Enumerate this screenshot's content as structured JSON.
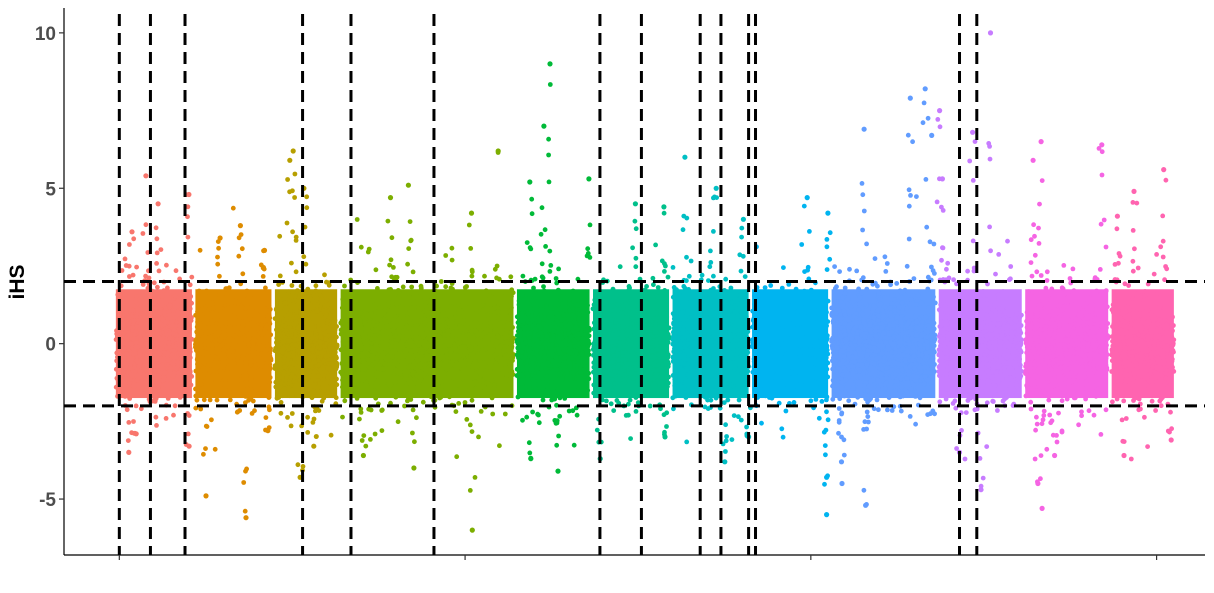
{
  "chart_data": {
    "type": "scatter",
    "title": "",
    "xlabel": "",
    "ylabel": "iHS",
    "ylim": [
      -6.8,
      10.8
    ],
    "xlim": [
      -0.5,
      32.5
    ],
    "grid": false,
    "legend": "none",
    "y_ticks": [
      -5,
      0,
      5,
      10
    ],
    "y_tick_labels": [
      "-5",
      "0",
      "5",
      "10"
    ],
    "x_ticks_unlabeled": [
      1.1,
      11.1,
      21.1,
      31.1
    ],
    "threshold_lines": [
      2,
      -2
    ],
    "vertical_lines": [
      1.1,
      2.0,
      3.0,
      6.4,
      7.8,
      10.2,
      15.0,
      16.2,
      17.9,
      18.5,
      19.3,
      19.5,
      25.4,
      25.9
    ],
    "segments": [
      {
        "id": "1",
        "x_start": 1.0,
        "x_end": 3.2,
        "color": "#F8766D",
        "peaks": [
          5.4,
          4.8,
          4.5,
          3.6
        ],
        "troughs": [
          -3.5,
          -3.3,
          -2.9
        ]
      },
      {
        "id": "2",
        "x_start": 3.3,
        "x_end": 5.5,
        "color": "#DE8C00",
        "peaks": [
          3.8,
          3.4,
          3.0
        ],
        "troughs": [
          -5.6,
          -4.9,
          -2.8
        ]
      },
      {
        "id": "3",
        "x_start": 5.6,
        "x_end": 7.4,
        "color": "#B79F00",
        "peaks": [
          6.2,
          5.9,
          5.0
        ],
        "troughs": [
          -4.3,
          -3.3
        ]
      },
      {
        "id": "4",
        "x_start": 7.5,
        "x_end": 12.5,
        "color": "#7CAE00",
        "peaks": [
          6.2,
          5.1,
          4.7,
          4.2
        ],
        "troughs": [
          -6.0,
          -4.0,
          -3.6
        ]
      },
      {
        "id": "5",
        "x_start": 12.6,
        "x_end": 14.7,
        "color": "#00BA38",
        "peaks": [
          9.0,
          7.0,
          5.3,
          5.2
        ],
        "troughs": [
          -4.1,
          -3.7
        ]
      },
      {
        "id": "6",
        "x_start": 14.8,
        "x_end": 17.0,
        "color": "#00C08B",
        "peaks": [
          4.5,
          4.4
        ],
        "troughs": [
          -3.7,
          -3.0
        ]
      },
      {
        "id": "7",
        "x_start": 17.1,
        "x_end": 19.3,
        "color": "#00BFC4",
        "peaks": [
          6.0,
          5.0,
          4.0
        ],
        "troughs": [
          -3.8,
          -3.0
        ]
      },
      {
        "id": "8",
        "x_start": 19.4,
        "x_end": 21.6,
        "color": "#00B4F0",
        "peaks": [
          4.7,
          4.2
        ],
        "troughs": [
          -5.5,
          -4.3
        ]
      },
      {
        "id": "9",
        "x_start": 21.7,
        "x_end": 24.7,
        "color": "#619CFF",
        "peaks": [
          8.2,
          7.9,
          6.9,
          6.7
        ],
        "troughs": [
          -5.2,
          -4.5,
          -3.8
        ]
      },
      {
        "id": "10",
        "x_start": 24.8,
        "x_end": 27.2,
        "color": "#C77CFF",
        "peaks": [
          10.0,
          7.5,
          6.8,
          5.3
        ],
        "troughs": [
          -4.7,
          -3.5
        ]
      },
      {
        "id": "11",
        "x_start": 27.3,
        "x_end": 29.7,
        "color": "#F564E3",
        "peaks": [
          6.5,
          6.4,
          5.9
        ],
        "troughs": [
          -5.3,
          -4.5,
          -3.6
        ]
      },
      {
        "id": "12",
        "x_start": 29.8,
        "x_end": 31.6,
        "color": "#FF64B0",
        "peaks": [
          5.6,
          4.9,
          4.1
        ],
        "troughs": [
          -3.6,
          -3.1
        ]
      }
    ]
  }
}
